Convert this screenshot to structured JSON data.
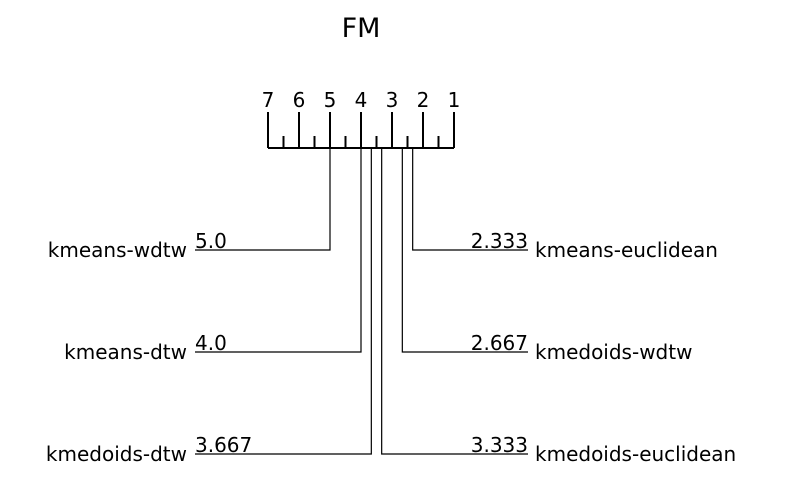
{
  "chart_data": {
    "type": "critical-difference",
    "title": "FM",
    "axis": {
      "min_rank": 1,
      "max_rank": 7,
      "tick_labels": [
        "7",
        "6",
        "5",
        "4",
        "3",
        "2",
        "1"
      ],
      "reversed": true
    },
    "left_methods": [
      {
        "name": "kmeans-wdtw",
        "rank": 5.0,
        "rank_label": "5.0"
      },
      {
        "name": "kmeans-dtw",
        "rank": 4.0,
        "rank_label": "4.0"
      },
      {
        "name": "kmedoids-dtw",
        "rank": 3.667,
        "rank_label": "3.667"
      }
    ],
    "right_methods": [
      {
        "name": "kmeans-euclidean",
        "rank": 2.333,
        "rank_label": "2.333"
      },
      {
        "name": "kmedoids-wdtw",
        "rank": 2.667,
        "rank_label": "2.667"
      },
      {
        "name": "kmedoids-euclidean",
        "rank": 3.333,
        "rank_label": "3.333"
      }
    ],
    "colors": {
      "line": "#000000",
      "background": "#ffffff"
    }
  }
}
